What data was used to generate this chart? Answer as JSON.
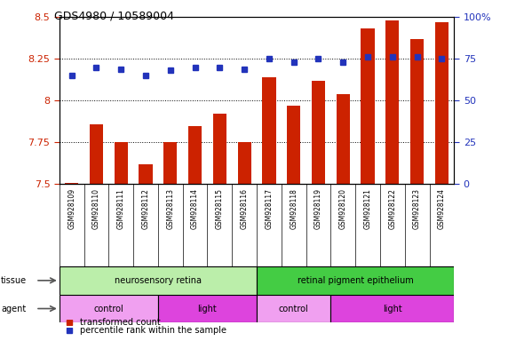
{
  "title": "GDS4980 / 10589004",
  "samples": [
    "GSM928109",
    "GSM928110",
    "GSM928111",
    "GSM928112",
    "GSM928113",
    "GSM928114",
    "GSM928115",
    "GSM928116",
    "GSM928117",
    "GSM928118",
    "GSM928119",
    "GSM928120",
    "GSM928121",
    "GSM928122",
    "GSM928123",
    "GSM928124"
  ],
  "bar_values": [
    7.505,
    7.86,
    7.75,
    7.62,
    7.75,
    7.85,
    7.92,
    7.75,
    8.14,
    7.97,
    8.12,
    8.04,
    8.43,
    8.48,
    8.37,
    8.47
  ],
  "dot_values": [
    65,
    70,
    69,
    65,
    68,
    70,
    70,
    69,
    75,
    73,
    75,
    73,
    76,
    76,
    76,
    75
  ],
  "ylim_left": [
    7.5,
    8.5
  ],
  "ylim_right": [
    0,
    100
  ],
  "yticks_left": [
    7.5,
    7.75,
    8.0,
    8.25,
    8.5
  ],
  "yticks_right": [
    0,
    25,
    50,
    75,
    100
  ],
  "bar_color": "#cc2200",
  "dot_color": "#2233bb",
  "gridline_y": [
    7.75,
    8.0,
    8.25
  ],
  "tissue_groups": [
    {
      "label": "neurosensory retina",
      "start": 0,
      "end": 8,
      "color": "#bbeeaa"
    },
    {
      "label": "retinal pigment epithelium",
      "start": 8,
      "end": 16,
      "color": "#44cc44"
    }
  ],
  "agent_groups": [
    {
      "label": "control",
      "start": 0,
      "end": 4,
      "color": "#f0a0f0"
    },
    {
      "label": "light",
      "start": 4,
      "end": 8,
      "color": "#dd44dd"
    },
    {
      "label": "control",
      "start": 8,
      "end": 11,
      "color": "#f0a0f0"
    },
    {
      "label": "light",
      "start": 11,
      "end": 16,
      "color": "#dd44dd"
    }
  ],
  "legend_items": [
    {
      "label": "transformed count",
      "color": "#cc2200"
    },
    {
      "label": "percentile rank within the sample",
      "color": "#2233bb"
    }
  ],
  "plot_bg": "#ffffff",
  "label_bg": "#cccccc",
  "bar_color_left": "#cc2200",
  "bar_color_right": "#2233bb",
  "bar_width": 0.55
}
